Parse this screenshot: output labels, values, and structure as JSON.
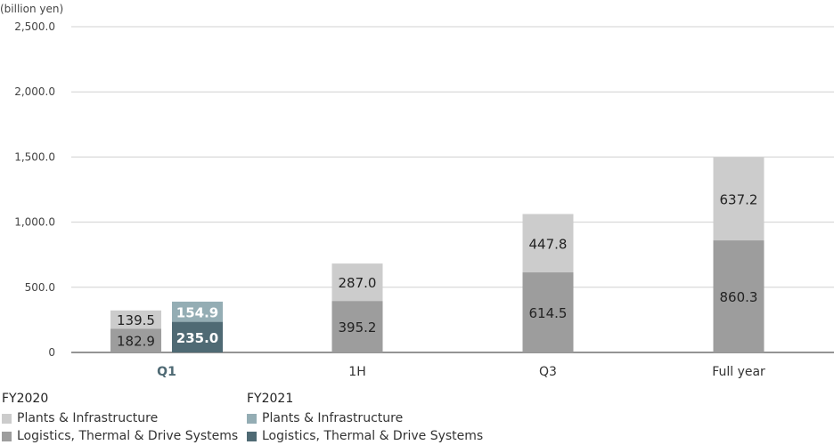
{
  "colors": {
    "fy2020_plants": "#cccccc",
    "fy2020_logistics": "#9d9d9d",
    "fy2021_plants": "#94adb4",
    "fy2021_logistics": "#4f6a74",
    "grid": "#d0d0d0",
    "axis": "#555555",
    "highlight_label": "#4f6a74"
  },
  "legend": [
    {
      "title": "FY2020",
      "items": [
        {
          "label": "Plants & Infrastructure",
          "color_key": "fy2020_plants"
        },
        {
          "label": "Logistics, Thermal & Drive Systems",
          "color_key": "fy2020_logistics"
        }
      ]
    },
    {
      "title": "FY2021",
      "items": [
        {
          "label": "Plants & Infrastructure",
          "color_key": "fy2021_plants"
        },
        {
          "label": "Logistics, Thermal & Drive Systems",
          "color_key": "fy2021_logistics"
        }
      ]
    }
  ],
  "chart_data": {
    "type": "bar",
    "stacked": true,
    "unit_label": "(billion yen)",
    "ylim": [
      0,
      2500
    ],
    "yticks": [
      0,
      500,
      1000,
      1500,
      2000,
      2500
    ],
    "ytick_labels": [
      "0",
      "500.0",
      "1,000.0",
      "1,500.0",
      "2,000.0",
      "2,500.0"
    ],
    "grid": true,
    "categories": [
      "Q1",
      "1H",
      "Q3",
      "Full year"
    ],
    "highlight_category": "Q1",
    "groups": [
      {
        "name": "FY2020",
        "series": [
          {
            "name": "Logistics, Thermal & Drive Systems",
            "color_key": "fy2020_logistics",
            "values": [
              182.9,
              395.2,
              614.5,
              860.3
            ],
            "labels": [
              "182.9",
              "395.2",
              "614.5",
              "860.3"
            ]
          },
          {
            "name": "Plants & Infrastructure",
            "color_key": "fy2020_plants",
            "values": [
              139.5,
              287.0,
              447.8,
              637.2
            ],
            "labels": [
              "139.5",
              "287.0",
              "447.8",
              "637.2"
            ]
          }
        ]
      },
      {
        "name": "FY2021",
        "series": [
          {
            "name": "Logistics, Thermal & Drive Systems",
            "color_key": "fy2021_logistics",
            "values": [
              235.0,
              null,
              null,
              null
            ],
            "labels": [
              "235.0",
              null,
              null,
              null
            ]
          },
          {
            "name": "Plants & Infrastructure",
            "color_key": "fy2021_plants",
            "values": [
              154.9,
              null,
              null,
              null
            ],
            "labels": [
              "154.9",
              null,
              null,
              null
            ]
          }
        ]
      }
    ]
  }
}
